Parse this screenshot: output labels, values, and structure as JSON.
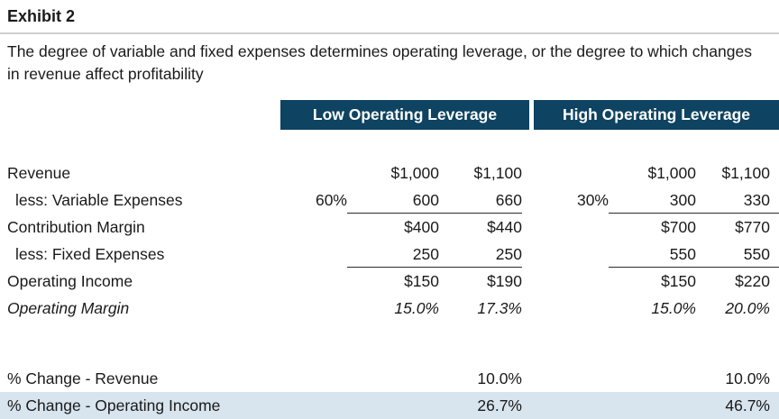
{
  "exhibit": {
    "title": "Exhibit 2",
    "subtitle": "The degree of variable and fixed expenses determines operating leverage, or the degree to which changes in revenue affect profitability"
  },
  "colors": {
    "header_bg": "#0e4361",
    "header_text": "#ffffff",
    "highlight_row_bg": "#d8e4ee"
  },
  "group_headers": {
    "low": "Low Operating Leverage",
    "high": "High Operating Leverage"
  },
  "table": {
    "columns": [
      "label",
      "low_pct",
      "low_base",
      "low_new",
      "high_pct",
      "high_base",
      "high_new"
    ],
    "rows": [
      {
        "label": "Revenue",
        "low_pct": "",
        "low_base": "$1,000",
        "low_new": "$1,100",
        "high_pct": "",
        "high_base": "$1,000",
        "high_new": "$1,100"
      },
      {
        "label": "less: Variable Expenses",
        "indent": true,
        "rule": true,
        "low_pct": "60%",
        "low_base": "600",
        "low_new": "660",
        "high_pct": "30%",
        "high_base": "300",
        "high_new": "330"
      },
      {
        "label": "Contribution Margin",
        "low_pct": "",
        "low_base": "$400",
        "low_new": "$440",
        "high_pct": "",
        "high_base": "$700",
        "high_new": "$770"
      },
      {
        "label": "less: Fixed Expenses",
        "indent": true,
        "rule": true,
        "low_pct": "",
        "low_base": "250",
        "low_new": "250",
        "high_pct": "",
        "high_base": "550",
        "high_new": "550"
      },
      {
        "label": "Operating Income",
        "low_pct": "",
        "low_base": "$150",
        "low_new": "$190",
        "high_pct": "",
        "high_base": "$150",
        "high_new": "$220"
      },
      {
        "label": "Operating Margin",
        "italic": true,
        "low_pct": "",
        "low_base": "15.0%",
        "low_new": "17.3%",
        "high_pct": "",
        "high_base": "15.0%",
        "high_new": "20.0%"
      },
      {
        "spacer": true
      },
      {
        "label": "% Change - Revenue",
        "low_pct": "",
        "low_base": "",
        "low_new": "10.0%",
        "high_pct": "",
        "high_base": "",
        "high_new": "10.0%"
      },
      {
        "label": "% Change - Operating Income",
        "highlight": true,
        "low_pct": "",
        "low_base": "",
        "low_new": "26.7%",
        "high_pct": "",
        "high_base": "",
        "high_new": "46.7%"
      }
    ]
  }
}
